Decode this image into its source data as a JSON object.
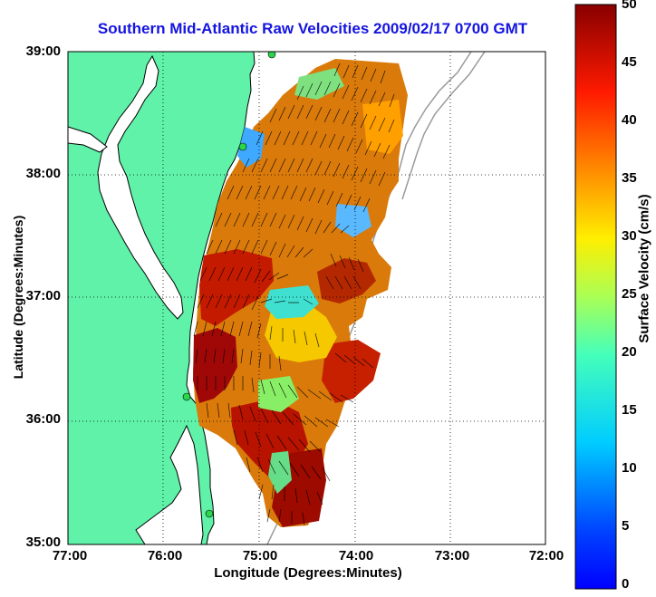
{
  "map": {
    "title": "Southern Mid-Atlantic Raw Velocities 2009/02/17 0700 GMT",
    "xlabel": "Longitude (Degrees:Minutes)",
    "ylabel": "Latitude (Degrees:Minutes)",
    "x_ticks": [
      "77:00",
      "76:00",
      "75:00",
      "74:00",
      "73:00",
      "72:00"
    ],
    "y_ticks": [
      "39:00",
      "38:00",
      "37:00",
      "36:00",
      "35:00"
    ],
    "lon_range": [
      -77,
      -72
    ],
    "lat_range": [
      35,
      39
    ],
    "grid": "dotted"
  },
  "colorbar": {
    "label": "Surface Velocity (cm/s)",
    "ticks": [
      "50",
      "45",
      "40",
      "35",
      "30",
      "25",
      "20",
      "15",
      "10",
      "5",
      "0"
    ],
    "range": [
      0,
      50
    ],
    "colormap": "jet"
  },
  "colors": {
    "land": "#5ff2a8",
    "coastline": "#000000",
    "title": "#1515e0",
    "bathymetry": "#9a9a9a",
    "site_marker": "#2bd64a"
  }
}
